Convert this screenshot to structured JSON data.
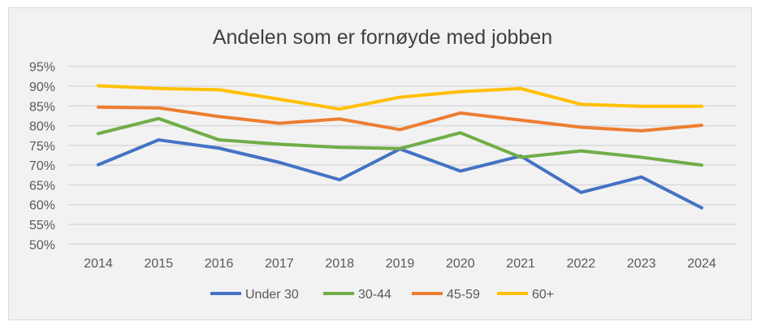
{
  "chart_data": {
    "type": "line",
    "title": "Andelen som er fornøyde med jobben",
    "xlabel": "",
    "ylabel": "",
    "categories": [
      "2014",
      "2015",
      "2016",
      "2017",
      "2018",
      "2019",
      "2020",
      "2021",
      "2022",
      "2023",
      "2024"
    ],
    "yticks": [
      "50%",
      "55%",
      "60%",
      "65%",
      "70%",
      "75%",
      "80%",
      "85%",
      "90%",
      "95%"
    ],
    "ylim": [
      50,
      95
    ],
    "grid": true,
    "legend_position": "bottom",
    "series": [
      {
        "name": "Under 30",
        "color": "#4472c4",
        "values": [
          70.1,
          76.4,
          74.3,
          70.7,
          66.3,
          74.1,
          68.5,
          72.3,
          63.1,
          67.0,
          59.2
        ]
      },
      {
        "name": "30-44",
        "color": "#70ad47",
        "values": [
          78.0,
          81.8,
          76.4,
          75.3,
          74.5,
          74.2,
          78.2,
          72.0,
          73.6,
          72.0,
          70.0
        ]
      },
      {
        "name": "45-59",
        "color": "#ed7d31",
        "values": [
          84.7,
          84.5,
          82.3,
          80.6,
          81.7,
          79.0,
          83.2,
          81.4,
          79.6,
          78.7,
          80.1
        ]
      },
      {
        "name": "60+",
        "color": "#ffc000",
        "values": [
          90.1,
          89.4,
          89.1,
          86.7,
          84.2,
          87.2,
          88.6,
          89.4,
          85.4,
          84.9,
          84.9
        ]
      }
    ]
  }
}
